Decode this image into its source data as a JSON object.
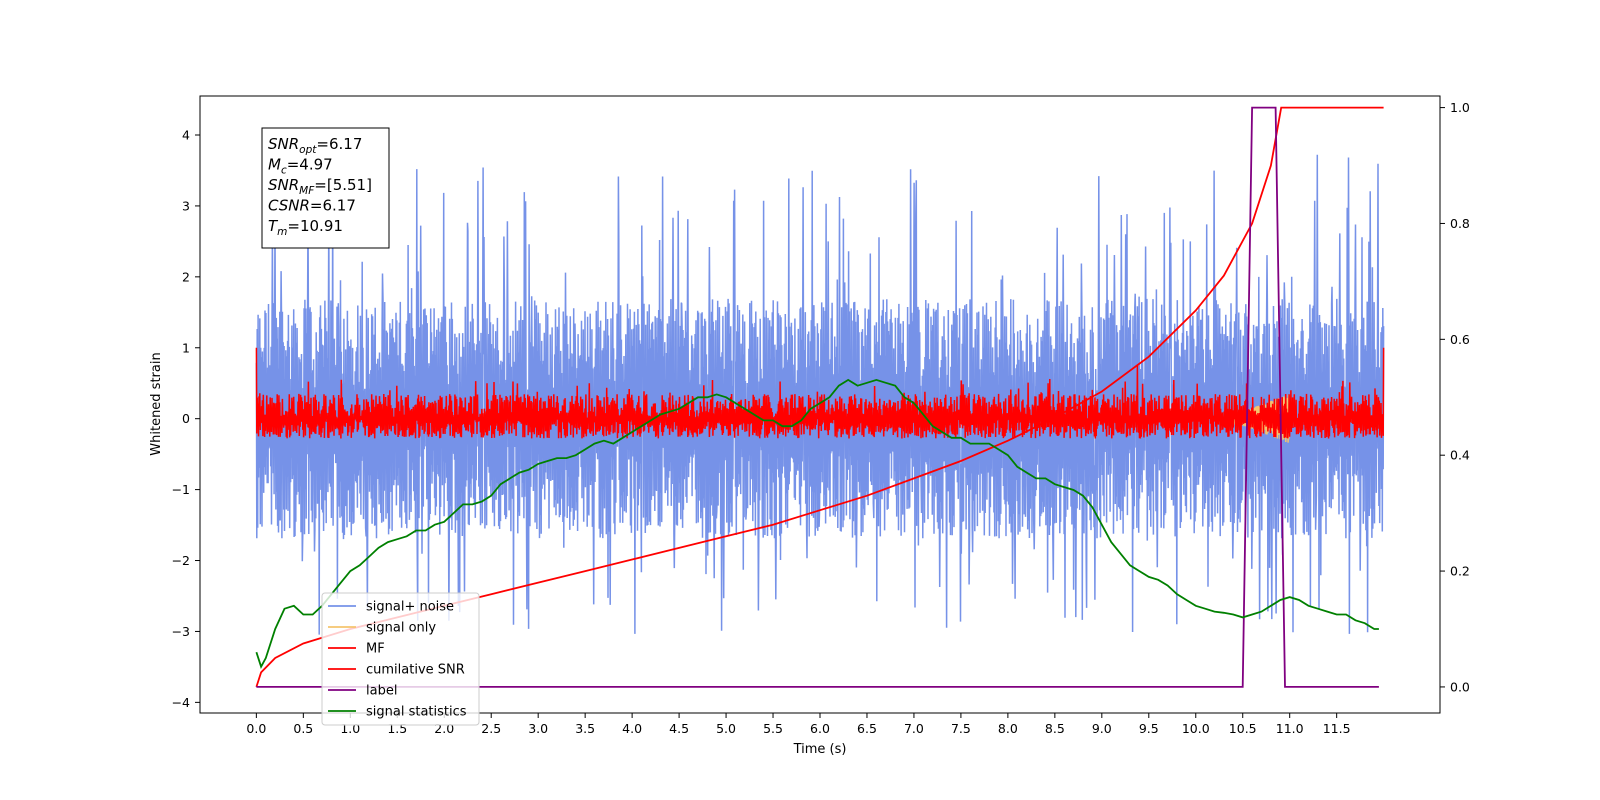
{
  "chart_data": {
    "type": "line",
    "title": "",
    "xlabel": "Time (s)",
    "ylabel": "Whitened strain",
    "xlim": [
      -0.6,
      12.6
    ],
    "ylim": [
      -4.15,
      4.55
    ],
    "y2lim": [
      -0.045,
      1.02
    ],
    "x_ticks": [
      0.0,
      0.5,
      1.0,
      1.5,
      2.0,
      2.5,
      3.0,
      3.5,
      4.0,
      4.5,
      5.0,
      5.5,
      6.0,
      6.5,
      7.0,
      7.5,
      8.0,
      8.5,
      9.0,
      9.5,
      10.0,
      10.5,
      11.0,
      11.5
    ],
    "x_tick_labels": [
      "0.0",
      "0.5",
      "1.0",
      "1.5",
      "2.0",
      "2.5",
      "3.0",
      "3.5",
      "4.0",
      "4.5",
      "5.0",
      "5.5",
      "6.0",
      "6.5",
      "7.0",
      "7.5",
      "8.0",
      "8.5",
      "9.0",
      "9.5",
      "10.0",
      "10.5",
      "11.0",
      "11.5"
    ],
    "y_ticks": [
      4,
      3,
      2,
      1,
      0,
      -1,
      -2,
      -3,
      -4
    ],
    "y_tick_labels": [
      "4",
      "3",
      "2",
      "1",
      "0",
      "−1",
      "−2",
      "−3",
      "−4"
    ],
    "y2_ticks": [
      1.0,
      0.8,
      0.6,
      0.4,
      0.2,
      0.0
    ],
    "y2_tick_labels": [
      "1.0",
      "0.8",
      "0.6",
      "0.4",
      "0.2",
      "0.0"
    ],
    "grid": false,
    "legend_position": "lower-left",
    "annotation": {
      "lines": [
        {
          "main": "SNR",
          "sub": "opt",
          "value": "=6.17"
        },
        {
          "main": "M",
          "sub": "c",
          "value": "=4.97"
        },
        {
          "main": "SNR",
          "sub": "MF",
          "value": "=[5.51]"
        },
        {
          "main": "CSNR",
          "sub": "",
          "value": "=6.17"
        },
        {
          "main": "T",
          "sub": "m",
          "value": "=10.91"
        }
      ]
    },
    "series": [
      {
        "name": "signal+ noise",
        "axis": "left",
        "color": "#7692e8",
        "kind": "noise",
        "x_range": [
          0,
          12
        ],
        "envelope_pos": [
          [
            0,
            1.3
          ],
          [
            12,
            1.3
          ]
        ],
        "envelope_neg": [
          [
            0,
            -1.3
          ],
          [
            12,
            -1.3
          ]
        ],
        "peak_max": 4.15,
        "peak_min": -3.5
      },
      {
        "name": "signal only",
        "axis": "left",
        "color": "#f5c46e",
        "kind": "chirp",
        "x_range": [
          10.3,
          11.0
        ],
        "amplitude_max": 0.35
      },
      {
        "name": "MF",
        "axis": "left",
        "color": "#ff0000",
        "kind": "noise",
        "x_range": [
          0,
          12
        ],
        "envelope_pos": [
          [
            0,
            0.35
          ],
          [
            12,
            0.35
          ]
        ],
        "envelope_neg": [
          [
            0,
            -0.28
          ],
          [
            12,
            -0.28
          ]
        ],
        "spikes": [
          [
            0.0,
            1.0
          ],
          [
            9.38,
            0.75
          ],
          [
            12.0,
            1.0
          ]
        ]
      },
      {
        "name": "cumilative SNR",
        "axis": "right",
        "color": "#ff0000",
        "kind": "line",
        "x": [
          0.0,
          0.05,
          0.2,
          0.5,
          1.0,
          1.5,
          2.0,
          2.5,
          3.0,
          3.5,
          4.0,
          4.5,
          5.0,
          5.5,
          6.0,
          6.5,
          7.0,
          7.5,
          8.0,
          8.5,
          9.0,
          9.5,
          10.0,
          10.3,
          10.6,
          10.8,
          10.91,
          11.0,
          11.5,
          12.0
        ],
        "y": [
          0.0,
          0.025,
          0.05,
          0.075,
          0.1,
          0.12,
          0.14,
          0.16,
          0.18,
          0.2,
          0.22,
          0.24,
          0.26,
          0.28,
          0.305,
          0.33,
          0.36,
          0.39,
          0.425,
          0.465,
          0.51,
          0.57,
          0.65,
          0.71,
          0.8,
          0.9,
          1.0,
          1.0,
          1.0,
          1.0
        ]
      },
      {
        "name": "label",
        "axis": "right",
        "color": "#800080",
        "kind": "line",
        "x": [
          0.0,
          10.5,
          10.6,
          10.85,
          10.95,
          11.95
        ],
        "y": [
          0.0,
          0.0,
          1.0,
          1.0,
          0.0,
          0.0
        ]
      },
      {
        "name": "signal statistics",
        "axis": "right",
        "color": "#008000",
        "kind": "line",
        "x": [
          0.0,
          0.05,
          0.1,
          0.2,
          0.3,
          0.4,
          0.5,
          0.6,
          0.7,
          0.8,
          0.9,
          1.0,
          1.1,
          1.2,
          1.3,
          1.4,
          1.5,
          1.6,
          1.7,
          1.8,
          1.9,
          2.0,
          2.1,
          2.2,
          2.3,
          2.4,
          2.5,
          2.6,
          2.7,
          2.8,
          2.9,
          3.0,
          3.1,
          3.2,
          3.3,
          3.4,
          3.5,
          3.6,
          3.7,
          3.8,
          3.9,
          4.0,
          4.1,
          4.2,
          4.3,
          4.4,
          4.5,
          4.6,
          4.7,
          4.8,
          4.9,
          5.0,
          5.1,
          5.2,
          5.3,
          5.4,
          5.5,
          5.6,
          5.7,
          5.8,
          5.9,
          6.0,
          6.1,
          6.2,
          6.3,
          6.4,
          6.5,
          6.6,
          6.7,
          6.8,
          6.9,
          7.0,
          7.1,
          7.2,
          7.3,
          7.4,
          7.5,
          7.6,
          7.7,
          7.8,
          7.9,
          8.0,
          8.1,
          8.2,
          8.3,
          8.4,
          8.5,
          8.6,
          8.7,
          8.8,
          8.9,
          9.0,
          9.1,
          9.2,
          9.3,
          9.4,
          9.5,
          9.6,
          9.7,
          9.8,
          9.9,
          10.0,
          10.1,
          10.2,
          10.3,
          10.4,
          10.5,
          10.6,
          10.7,
          10.8,
          10.9,
          11.0,
          11.1,
          11.2,
          11.3,
          11.4,
          11.5,
          11.6,
          11.7,
          11.8,
          11.9,
          11.95
        ],
        "y": [
          0.06,
          0.035,
          0.05,
          0.1,
          0.135,
          0.14,
          0.125,
          0.125,
          0.14,
          0.16,
          0.18,
          0.2,
          0.21,
          0.225,
          0.24,
          0.25,
          0.255,
          0.26,
          0.27,
          0.27,
          0.28,
          0.285,
          0.3,
          0.315,
          0.315,
          0.32,
          0.33,
          0.35,
          0.36,
          0.37,
          0.375,
          0.385,
          0.39,
          0.395,
          0.395,
          0.4,
          0.41,
          0.42,
          0.425,
          0.42,
          0.43,
          0.44,
          0.45,
          0.46,
          0.47,
          0.475,
          0.48,
          0.49,
          0.5,
          0.5,
          0.505,
          0.5,
          0.49,
          0.48,
          0.47,
          0.46,
          0.46,
          0.45,
          0.45,
          0.46,
          0.48,
          0.49,
          0.5,
          0.52,
          0.53,
          0.52,
          0.525,
          0.53,
          0.525,
          0.52,
          0.5,
          0.49,
          0.47,
          0.45,
          0.44,
          0.43,
          0.43,
          0.42,
          0.42,
          0.42,
          0.41,
          0.4,
          0.38,
          0.37,
          0.36,
          0.36,
          0.35,
          0.345,
          0.34,
          0.33,
          0.31,
          0.28,
          0.25,
          0.23,
          0.21,
          0.2,
          0.19,
          0.185,
          0.175,
          0.16,
          0.15,
          0.14,
          0.135,
          0.13,
          0.128,
          0.125,
          0.12,
          0.125,
          0.13,
          0.14,
          0.15,
          0.155,
          0.15,
          0.14,
          0.135,
          0.13,
          0.125,
          0.125,
          0.115,
          0.11,
          0.1,
          0.1
        ]
      }
    ]
  }
}
